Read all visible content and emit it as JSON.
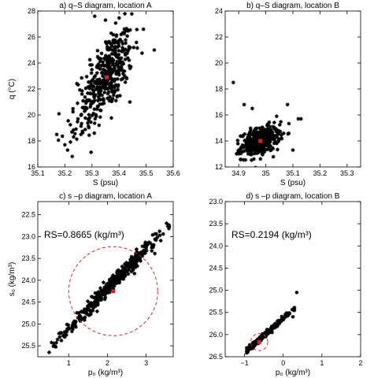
{
  "chart_data": [
    {
      "panel": "a",
      "type": "scatter",
      "title": "a) q–S diagram, location A",
      "xlabel": "S (psu)",
      "ylabel": "q (°C)",
      "xlim": [
        35.1,
        35.6
      ],
      "ylim": [
        16,
        28
      ],
      "xticks": [
        35.1,
        35.2,
        35.3,
        35.4,
        35.5,
        35.6
      ],
      "yticks": [
        16,
        18,
        20,
        22,
        24,
        26,
        28
      ],
      "xtick_labels": [
        "35.1",
        "35.2",
        "35.3",
        "35.4",
        "35.5",
        "35.6"
      ],
      "ytick_labels": [
        "16",
        "18",
        "20",
        "22",
        "24",
        "26",
        "28"
      ],
      "marker_color": "#000000",
      "mean_point": {
        "x": 35.355,
        "y": 22.9,
        "color": "#e02020"
      },
      "cloud": [
        {
          "center": [
            35.36,
            23.2
          ],
          "spread": [
            0.045,
            1.7
          ],
          "corr": 0.55,
          "n": 380
        },
        {
          "center": [
            35.26,
            19.5
          ],
          "spread": [
            0.04,
            1.1
          ],
          "corr": 0.45,
          "n": 45
        }
      ],
      "outliers": [
        [
          35.17,
          18.5
        ],
        [
          35.21,
          17.3
        ],
        [
          35.2,
          17.7
        ],
        [
          35.53,
          25.0
        ],
        [
          35.49,
          26.6
        ],
        [
          35.44,
          21.0
        ],
        [
          35.35,
          27.3
        ],
        [
          35.31,
          27.6
        ]
      ],
      "grid": false
    },
    {
      "panel": "b",
      "type": "scatter",
      "title": "b) q–S diagram, location B",
      "xlabel": "S (psu)",
      "ylabel": "",
      "xlim": [
        34.85,
        35.35
      ],
      "ylim": [
        12,
        24
      ],
      "xticks": [
        34.9,
        35.0,
        35.1,
        35.2,
        35.3
      ],
      "yticks": [
        12,
        14,
        16,
        18,
        20,
        22,
        24
      ],
      "xtick_labels": [
        "34.9",
        "35",
        "35.1",
        "35.2",
        "35.3"
      ],
      "ytick_labels": [
        "12",
        "14",
        "16",
        "18",
        "20",
        "22",
        "24"
      ],
      "marker_color": "#000000",
      "mean_point": {
        "x": 34.98,
        "y": 14.0,
        "color": "#e02020"
      },
      "cloud": [
        {
          "center": [
            34.98,
            14.0
          ],
          "spread": [
            0.035,
            0.55
          ],
          "corr": 0.4,
          "n": 400
        }
      ],
      "outliers": [
        [
          34.88,
          18.5
        ],
        [
          34.92,
          16.8
        ],
        [
          34.95,
          16.5
        ],
        [
          35.13,
          15.7
        ],
        [
          35.12,
          15.7
        ],
        [
          35.08,
          16.8
        ],
        [
          35.1,
          13.3
        ],
        [
          35.04,
          15.9
        ]
      ],
      "grid": false
    },
    {
      "panel": "c",
      "type": "scatter",
      "title": "c) s –p diagram, location A",
      "xlabel": "p₀ (kg/m³)",
      "ylabel": "s₀ (kg/m³)",
      "xlim": [
        0.2,
        3.7
      ],
      "ylim": [
        25.75,
        22.2
      ],
      "y_reversed": true,
      "xticks": [
        1,
        2,
        3
      ],
      "yticks": [
        22.5,
        23.0,
        23.5,
        24.0,
        24.5,
        25.0,
        25.5
      ],
      "xtick_labels": [
        "1",
        "2",
        "3"
      ],
      "ytick_labels": [
        "22.5",
        "23.0",
        "23.5",
        "24.0",
        "24.5",
        "25.0",
        "25.5"
      ],
      "annotation": "RS=0.8665 (kg/m³)",
      "marker_color": "#000000",
      "mean_point": {
        "x": 2.15,
        "y": 24.25,
        "color": "#e02020"
      },
      "circle": {
        "cx": 2.15,
        "cy": 24.25,
        "r": 1.15,
        "color": "#e02020"
      },
      "line_cloud": {
        "x0": 0.4,
        "y0": 25.65,
        "x1": 3.6,
        "y1": 22.75,
        "n": 430,
        "density_center": 2.15,
        "density_spread": 0.65,
        "scatter": 0.06
      },
      "grid": false
    },
    {
      "panel": "d",
      "type": "scatter",
      "title": "d) s –p diagram, location B",
      "xlabel": "p₀ (kg/m³)",
      "ylabel": "",
      "xlim": [
        -1.5,
        2
      ],
      "ylim": [
        26.5,
        23.0
      ],
      "y_reversed": true,
      "xticks": [
        -1,
        0,
        1,
        2
      ],
      "yticks": [
        23.0,
        23.5,
        24.0,
        24.5,
        25.0,
        25.5,
        26.0,
        26.5
      ],
      "xtick_labels": [
        "−1",
        "0",
        "1",
        "2"
      ],
      "ytick_labels": [
        "23.0",
        "23.5",
        "24.0",
        "24.5",
        "25.0",
        "25.5",
        "26.0",
        "26.5"
      ],
      "annotation": "RS=0.2194 (kg/m³)",
      "marker_color": "#000000",
      "mean_point": {
        "x": -0.62,
        "y": 26.17,
        "color": "#e02020"
      },
      "circle": {
        "cx": -0.62,
        "cy": 26.17,
        "r": 0.22,
        "color": "#e02020"
      },
      "line_cloud": {
        "x0": -0.95,
        "y0": 26.37,
        "x1": 0.3,
        "y1": 25.4,
        "n": 330,
        "density_center": -0.62,
        "density_spread": 0.28,
        "scatter": 0.05
      },
      "extra_points": [
        [
          0.35,
          25.05
        ],
        [
          0.1,
          25.55
        ],
        [
          0.25,
          25.6
        ],
        [
          -0.1,
          25.75
        ]
      ],
      "grid": false
    }
  ]
}
